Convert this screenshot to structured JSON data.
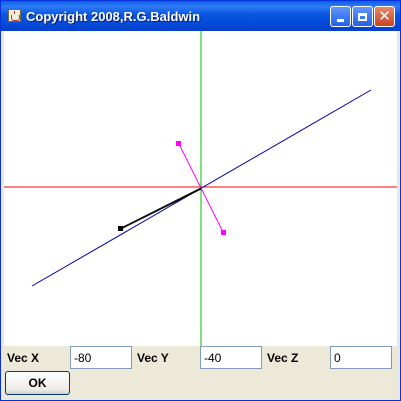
{
  "window": {
    "title": "Copyright  2008,R.G.Baldwin",
    "app_icon": "java-cup-icon",
    "buttons": {
      "minimize": "minimize-icon",
      "maximize": "maximize-icon",
      "close": "close-icon"
    }
  },
  "canvas": {
    "background": "#ffffff",
    "x_axis_color": "#ff0000",
    "y_axis_color": "#00c000",
    "z_axis_color": "#0000a0",
    "projection_line_color": "#ff00ff",
    "vector_color": "#000000"
  },
  "controls": {
    "vec_x": {
      "label": "Vec X",
      "value": "-80"
    },
    "vec_y": {
      "label": "Vec Y",
      "value": "-40"
    },
    "vec_z": {
      "label": "Vec Z",
      "value": "0"
    },
    "ok_label": "OK"
  }
}
